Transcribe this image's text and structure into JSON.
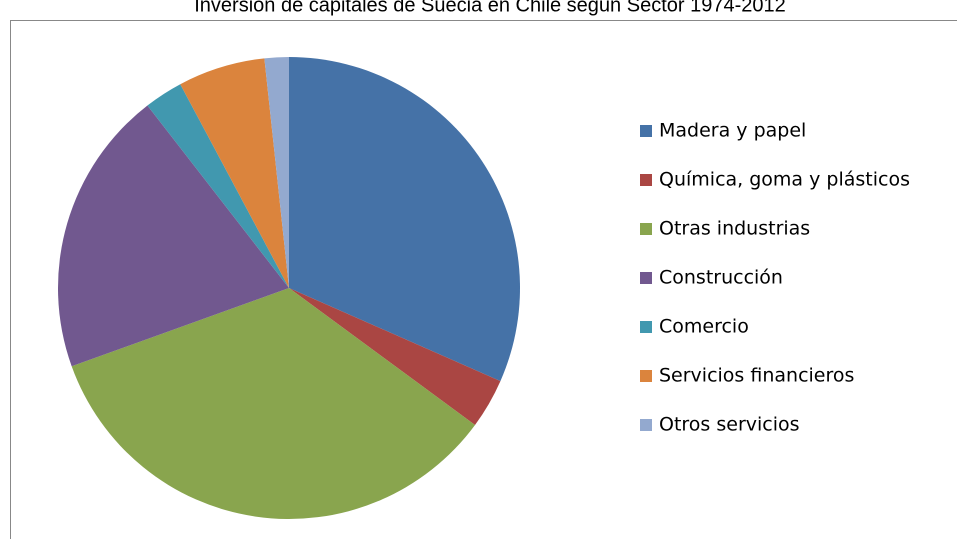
{
  "chart_data": {
    "type": "pie",
    "title": "Inversión de capitales de Suecia en Chile según Sector 1974-2012",
    "categories": [
      "Madera y papel",
      "Química, goma y plásticos",
      "Otras industrias",
      "Construcción",
      "Comercio",
      "Servicios financieros",
      "Otros servicios"
    ],
    "values": [
      31.6,
      3.5,
      34.4,
      20.0,
      2.7,
      6.1,
      1.7
    ],
    "colors": [
      "#4572a7",
      "#aa4643",
      "#89a54e",
      "#71588f",
      "#4198af",
      "#db843d",
      "#93a9cf"
    ],
    "legend": "right"
  }
}
